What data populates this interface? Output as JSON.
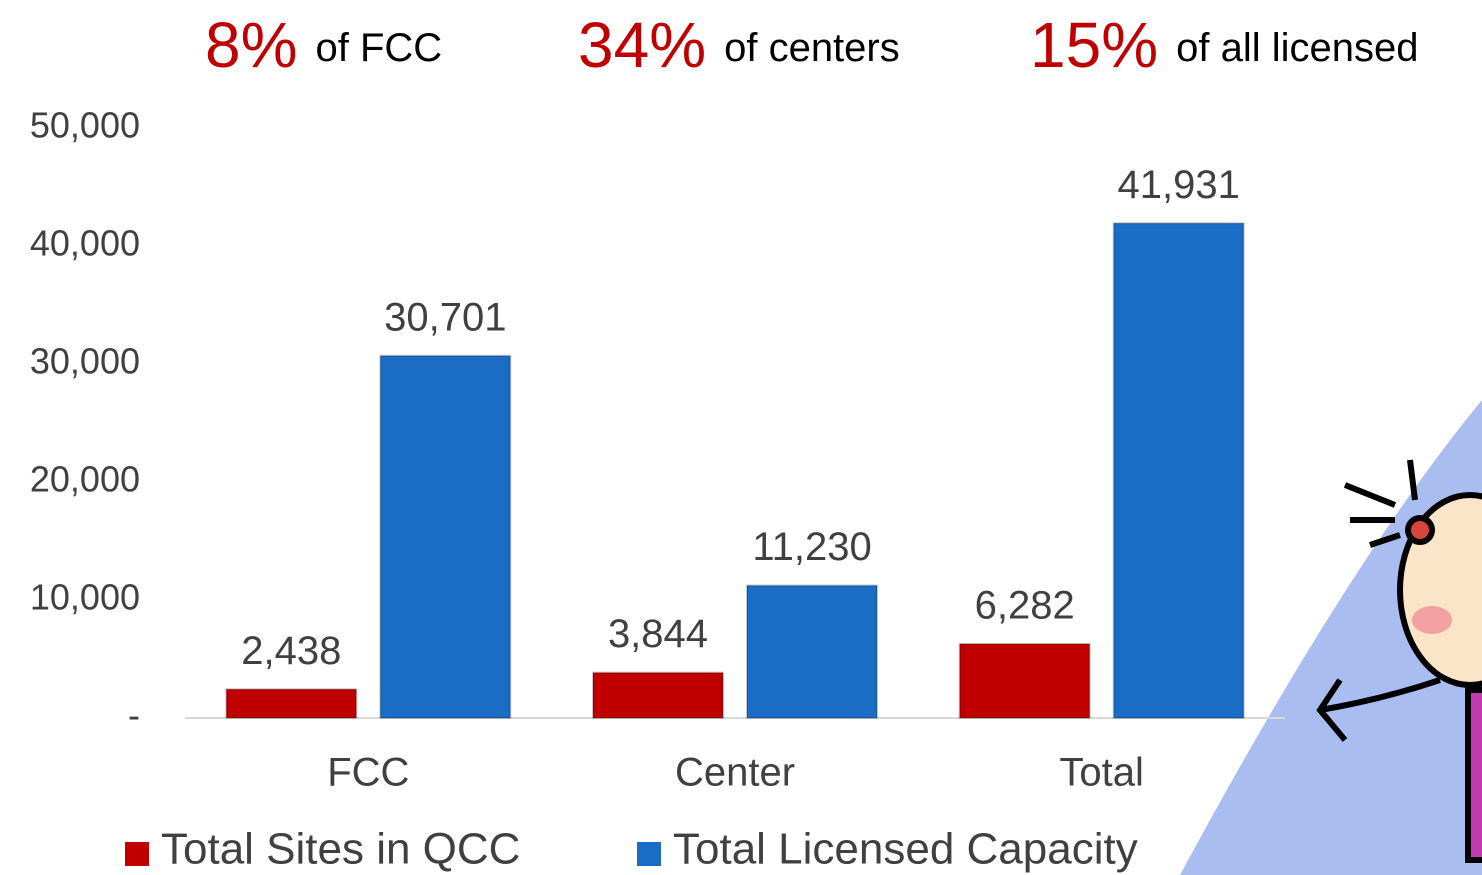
{
  "chart_data": {
    "type": "bar",
    "annotations": [
      {
        "figure": "8%",
        "text": "of FCC"
      },
      {
        "figure": "34%",
        "text": "of centers"
      },
      {
        "figure": "15%",
        "text": "of all licensed"
      }
    ],
    "categories": [
      "FCC",
      "Center",
      "Total"
    ],
    "series": [
      {
        "name": "Total Sites in QCC",
        "color": "#c00000",
        "values": [
          2438,
          3844,
          6282
        ],
        "value_labels": [
          "2,438",
          "3,844",
          "6,282"
        ]
      },
      {
        "name": "Total Licensed Capacity",
        "color": "#1a6cc4",
        "values": [
          30701,
          11230,
          41931
        ],
        "value_labels": [
          "30,701",
          "11,230",
          "41,931"
        ]
      }
    ],
    "ylim": [
      0,
      50000
    ],
    "yticks": [
      {
        "value": 0,
        "label": "-"
      },
      {
        "value": 10000,
        "label": "10,000"
      },
      {
        "value": 20000,
        "label": "20,000"
      },
      {
        "value": 30000,
        "label": "30,000"
      },
      {
        "value": 40000,
        "label": "40,000"
      },
      {
        "value": 50000,
        "label": "50,000"
      }
    ],
    "grid": false,
    "legend": "bottom"
  }
}
